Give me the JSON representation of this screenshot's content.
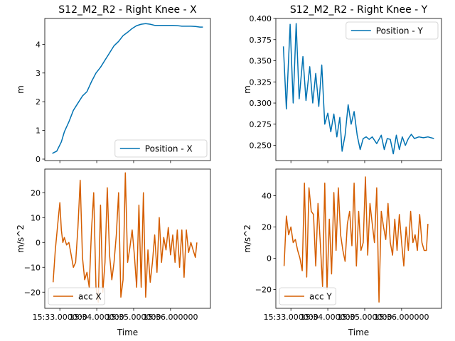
{
  "chart_data": [
    {
      "type": "line",
      "title": "S12_M2_R2 - Right Knee - X",
      "xlabel": "",
      "ylabel": "m",
      "ylim": [
        -0.05,
        4.9
      ],
      "yticks": [
        "0",
        "1",
        "2",
        "3",
        "4"
      ],
      "ytick_values": [
        0,
        1,
        2,
        3,
        4
      ],
      "xticks": [],
      "grid": false,
      "legend_loc": "lower-right",
      "series": [
        {
          "name": "Position - X",
          "color": "#0072b2",
          "x": [
            0.0,
            0.03,
            0.06,
            0.08,
            0.11,
            0.14,
            0.17,
            0.2,
            0.23,
            0.26,
            0.29,
            0.32,
            0.35,
            0.38,
            0.41,
            0.44,
            0.47,
            0.5,
            0.53,
            0.56,
            0.59,
            0.62,
            0.65,
            0.68,
            0.71,
            0.74,
            0.77,
            0.8,
            0.83,
            0.86,
            0.89,
            0.92,
            0.95,
            0.98,
            1.0
          ],
          "y": [
            0.2,
            0.28,
            0.6,
            0.95,
            1.3,
            1.7,
            1.95,
            2.2,
            2.35,
            2.7,
            3.0,
            3.2,
            3.45,
            3.7,
            3.95,
            4.1,
            4.3,
            4.42,
            4.55,
            4.65,
            4.7,
            4.72,
            4.7,
            4.66,
            4.66,
            4.66,
            4.66,
            4.66,
            4.65,
            4.63,
            4.63,
            4.63,
            4.62,
            4.6,
            4.6
          ]
        }
      ]
    },
    {
      "type": "line",
      "title": "S12_M2_R2 - Right Knee - Y",
      "xlabel": "",
      "ylabel": "m",
      "ylim": [
        0.232,
        0.4
      ],
      "yticks": [
        "0.250",
        "0.275",
        "0.300",
        "0.325",
        "0.350",
        "0.375",
        "0.400"
      ],
      "ytick_values": [
        0.25,
        0.275,
        0.3,
        0.325,
        0.35,
        0.375,
        0.4
      ],
      "xticks": [],
      "grid": false,
      "legend_loc": "upper-right",
      "series": [
        {
          "name": "Position - Y",
          "color": "#0072b2",
          "x": [
            0.0,
            0.02,
            0.045,
            0.065,
            0.085,
            0.105,
            0.13,
            0.15,
            0.175,
            0.195,
            0.215,
            0.235,
            0.255,
            0.275,
            0.295,
            0.315,
            0.335,
            0.355,
            0.375,
            0.39,
            0.41,
            0.43,
            0.45,
            0.47,
            0.49,
            0.51,
            0.53,
            0.55,
            0.57,
            0.59,
            0.62,
            0.65,
            0.67,
            0.69,
            0.71,
            0.73,
            0.75,
            0.77,
            0.79,
            0.81,
            0.83,
            0.85,
            0.87,
            0.9,
            0.93,
            0.96,
            1.0
          ],
          "y": [
            0.367,
            0.293,
            0.393,
            0.3,
            0.394,
            0.305,
            0.355,
            0.303,
            0.343,
            0.3,
            0.335,
            0.296,
            0.345,
            0.275,
            0.288,
            0.266,
            0.287,
            0.26,
            0.283,
            0.243,
            0.262,
            0.298,
            0.275,
            0.29,
            0.262,
            0.245,
            0.258,
            0.26,
            0.257,
            0.26,
            0.252,
            0.262,
            0.245,
            0.258,
            0.257,
            0.24,
            0.262,
            0.245,
            0.26,
            0.25,
            0.258,
            0.263,
            0.258,
            0.26,
            0.259,
            0.26,
            0.258
          ]
        }
      ]
    },
    {
      "type": "line",
      "title": "",
      "xlabel": "Time",
      "ylabel": "m/s^2",
      "ylim": [
        -26.5,
        29.5
      ],
      "yticks": [
        "−20",
        "−10",
        "0",
        "10",
        "20"
      ],
      "ytick_values": [
        -20,
        -10,
        0,
        10,
        20
      ],
      "xticks": [
        "15:33.000000",
        "15:34.000000",
        "15:35.000000",
        "15:36.000000"
      ],
      "xtick_values": [
        0.0,
        0.245,
        0.49,
        0.735
      ],
      "xlim": [
        -0.1,
        1.0
      ],
      "grid": false,
      "legend_loc": "lower-left",
      "series": [
        {
          "name": "acc X",
          "color": "#d55e00",
          "x": [
            -0.045,
            -0.03,
            -0.01,
            0.0,
            0.01,
            0.02,
            0.03,
            0.045,
            0.06,
            0.075,
            0.09,
            0.105,
            0.12,
            0.135,
            0.15,
            0.165,
            0.18,
            0.195,
            0.21,
            0.225,
            0.24,
            0.255,
            0.27,
            0.285,
            0.3,
            0.315,
            0.33,
            0.345,
            0.36,
            0.375,
            0.39,
            0.405,
            0.42,
            0.435,
            0.45,
            0.465,
            0.48,
            0.495,
            0.51,
            0.525,
            0.54,
            0.555,
            0.57,
            0.585,
            0.6,
            0.615,
            0.63,
            0.645,
            0.66,
            0.675,
            0.69,
            0.705,
            0.72,
            0.735,
            0.75,
            0.765,
            0.78,
            0.795,
            0.81,
            0.825,
            0.84,
            0.855,
            0.87,
            0.885,
            0.9,
            0.91
          ],
          "y": [
            -16,
            -3,
            10,
            16,
            5,
            0,
            2,
            -1,
            0,
            -5,
            -10,
            -8,
            6,
            25,
            -6,
            -15,
            -12,
            -18,
            5,
            20,
            -18,
            -24,
            15,
            -20,
            -8,
            22,
            -5,
            -15,
            -8,
            3,
            20,
            -22,
            -15,
            28,
            -8,
            -2,
            5,
            -5,
            -18,
            15,
            -18,
            20,
            -22,
            -3,
            -16,
            -8,
            3,
            -12,
            10,
            -8,
            2,
            -3,
            6,
            -5,
            3,
            -8,
            5,
            -10,
            5,
            -14,
            5,
            -4,
            0,
            -3,
            -6,
            0
          ]
        }
      ]
    },
    {
      "type": "line",
      "title": "",
      "xlabel": "Time",
      "ylabel": "m/s^2",
      "ylim": [
        -32,
        57
      ],
      "yticks": [
        "−20",
        "0",
        "20",
        "40"
      ],
      "ytick_values": [
        -20,
        0,
        20,
        40
      ],
      "xticks": [
        "15:33.000000",
        "15:34.000000",
        "15:35.000000",
        "15:36.000000"
      ],
      "xtick_values": [
        0.0,
        0.245,
        0.49,
        0.735
      ],
      "xlim": [
        -0.1,
        1.0
      ],
      "grid": false,
      "legend_loc": "lower-left",
      "series": [
        {
          "name": "acc Y",
          "color": "#d55e00",
          "x": [
            -0.045,
            -0.03,
            -0.015,
            0.0,
            0.015,
            0.03,
            0.045,
            0.06,
            0.075,
            0.09,
            0.105,
            0.12,
            0.135,
            0.15,
            0.165,
            0.18,
            0.195,
            0.21,
            0.225,
            0.24,
            0.255,
            0.27,
            0.285,
            0.3,
            0.315,
            0.33,
            0.345,
            0.36,
            0.375,
            0.39,
            0.405,
            0.42,
            0.435,
            0.45,
            0.465,
            0.48,
            0.495,
            0.51,
            0.525,
            0.54,
            0.555,
            0.57,
            0.585,
            0.6,
            0.615,
            0.63,
            0.645,
            0.66,
            0.675,
            0.69,
            0.705,
            0.72,
            0.735,
            0.75,
            0.765,
            0.78,
            0.795,
            0.81,
            0.825,
            0.84,
            0.855,
            0.87,
            0.885,
            0.9,
            0.91
          ],
          "y": [
            -5,
            27,
            15,
            20,
            10,
            12,
            5,
            0,
            -8,
            48,
            -12,
            45,
            30,
            28,
            -5,
            35,
            10,
            -18,
            48,
            -20,
            25,
            -10,
            42,
            5,
            45,
            15,
            5,
            -2,
            22,
            30,
            8,
            48,
            -5,
            30,
            5,
            10,
            52,
            2,
            35,
            22,
            10,
            45,
            -28,
            30,
            20,
            12,
            35,
            10,
            2,
            25,
            5,
            28,
            10,
            -5,
            20,
            5,
            30,
            10,
            15,
            5,
            28,
            10,
            5,
            5,
            22
          ]
        }
      ]
    }
  ]
}
